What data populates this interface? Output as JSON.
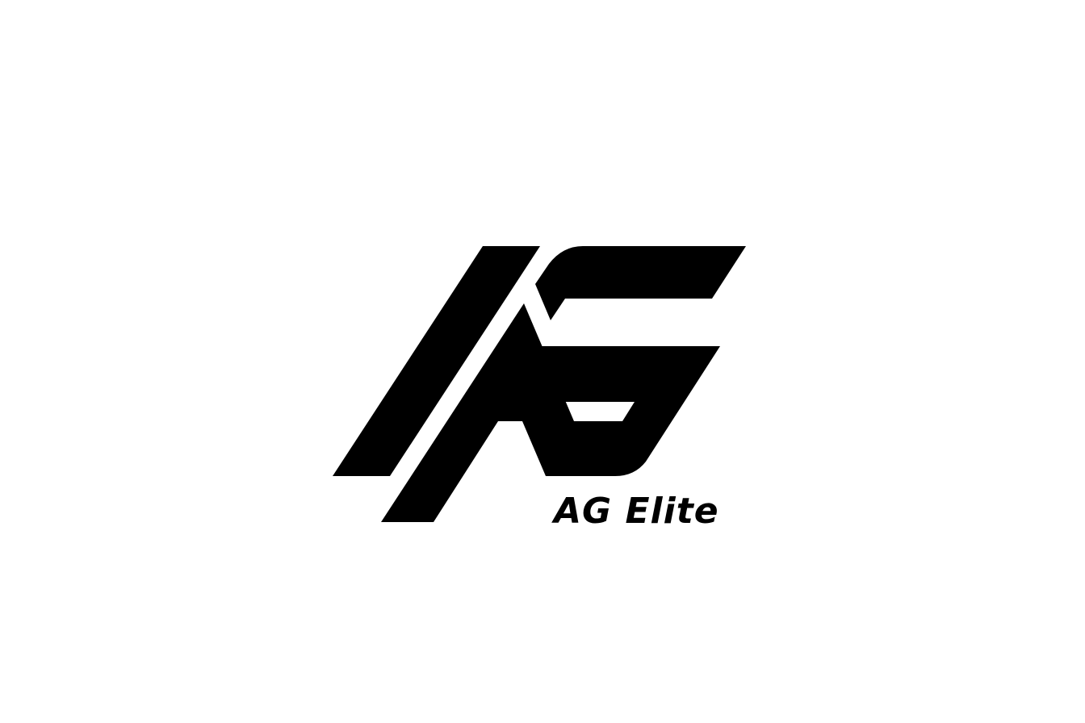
{
  "logo": {
    "wordmark": "AG Elite",
    "mark_color": "#000000",
    "background_color": "#ffffff"
  }
}
